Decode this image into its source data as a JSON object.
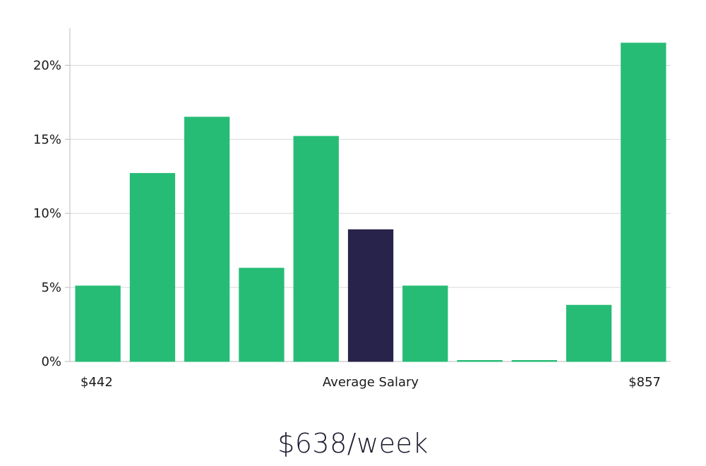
{
  "chart_data": {
    "type": "bar",
    "title": "",
    "xlabel": "Average Salary",
    "ylabel": "",
    "x_left_label": "$442",
    "x_right_label": "$857",
    "ylim": [
      0,
      22.5
    ],
    "yticks": [
      0,
      5,
      10,
      15,
      20
    ],
    "ytick_labels": [
      "0%",
      "5%",
      "10%",
      "15%",
      "20%"
    ],
    "grid": true,
    "values": [
      5.1,
      12.7,
      16.5,
      6.3,
      15.2,
      8.9,
      5.1,
      0,
      0,
      3.8,
      21.5
    ],
    "highlight_index": 5,
    "colors": {
      "bar": "#27bc76",
      "highlight": "#28234a",
      "grid": "#d9d9d9",
      "axis": "#bbbbbb"
    }
  },
  "summary": {
    "value": "$638/week"
  }
}
